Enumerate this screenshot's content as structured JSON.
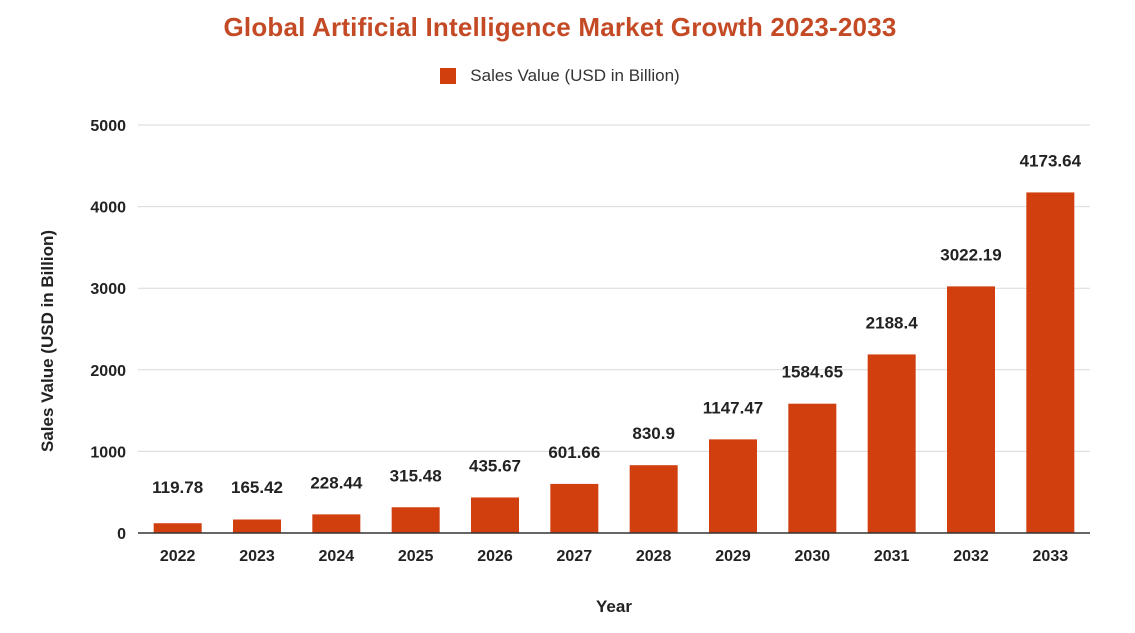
{
  "chart_data": {
    "type": "bar",
    "title": "Global Artificial Intelligence Market Growth 2023-2033",
    "categories": [
      "2022",
      "2023",
      "2024",
      "2025",
      "2026",
      "2027",
      "2028",
      "2029",
      "2030",
      "2031",
      "2032",
      "2033"
    ],
    "series": [
      {
        "name": "Sales Value (USD in Billion)",
        "values": [
          119.78,
          165.42,
          228.44,
          315.48,
          435.67,
          601.66,
          830.9,
          1147.47,
          1584.65,
          2188.4,
          3022.19,
          4173.64
        ],
        "color": "#d13f0f"
      }
    ],
    "xlabel": "Year",
    "ylabel": "Sales Value (USD in Billion)",
    "ylim": [
      0,
      5000
    ],
    "yticks": [
      0,
      1000,
      2000,
      3000,
      4000,
      5000
    ],
    "grid": true,
    "legend_position": "top",
    "data_labels": true
  },
  "colors": {
    "title": "#c44a25",
    "bar": "#d13f0f",
    "grid": "#d9d9d9",
    "axis": "#333333"
  }
}
